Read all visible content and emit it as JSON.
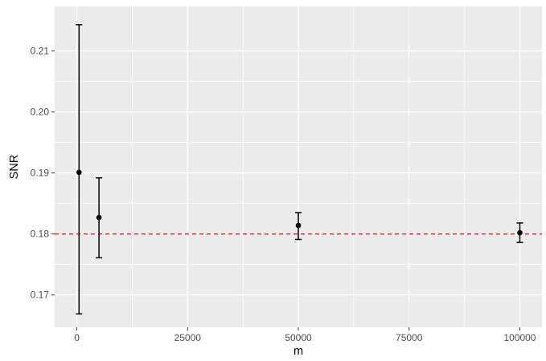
{
  "chart_data": {
    "type": "scatter",
    "xlabel": "m",
    "ylabel": "SNR",
    "xlim": [
      -5000,
      105000
    ],
    "ylim": [
      0.1647,
      0.2173
    ],
    "x_ticks": [
      0,
      25000,
      50000,
      75000,
      100000
    ],
    "x_tick_labels": [
      "0",
      "25000",
      "50000",
      "75000",
      "100000"
    ],
    "y_ticks": [
      0.17,
      0.18,
      0.19,
      0.2,
      0.21
    ],
    "y_tick_labels": [
      "0.17",
      "0.18",
      "0.19",
      "0.20",
      "0.21"
    ],
    "points": [
      {
        "x": 500,
        "y": 0.1901,
        "ymin": 0.1669,
        "ymax": 0.2143
      },
      {
        "x": 5000,
        "y": 0.1827,
        "ymin": 0.1761,
        "ymax": 0.1892
      },
      {
        "x": 50000,
        "y": 0.1814,
        "ymin": 0.1791,
        "ymax": 0.1835
      },
      {
        "x": 100000,
        "y": 0.1802,
        "ymin": 0.1786,
        "ymax": 0.1818
      }
    ],
    "reference_line": {
      "y": 0.18,
      "color": "#e41a1c",
      "style": "dashed"
    },
    "grid": true,
    "panel_background": "#ebebeb",
    "point_color": "#000000"
  }
}
